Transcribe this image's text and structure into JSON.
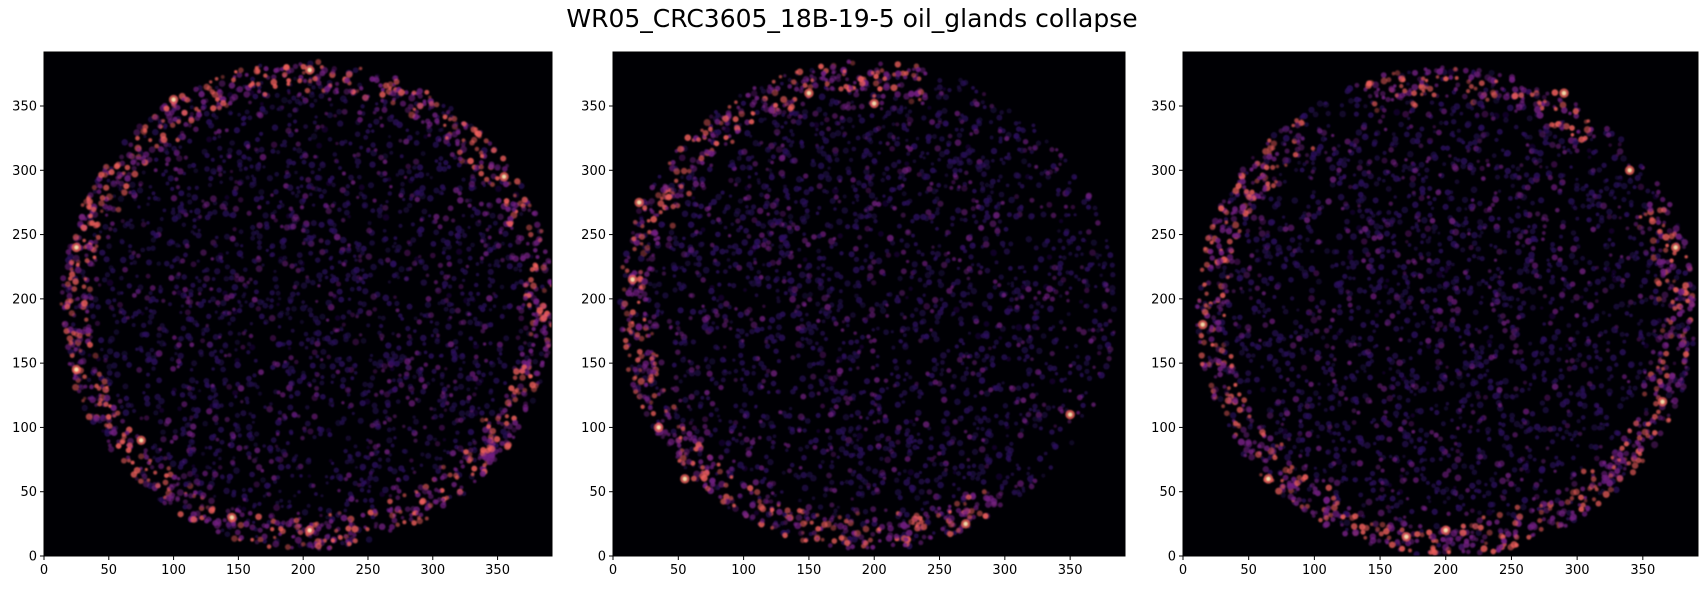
{
  "title": "WR05_CRC3605_18B-19-5 oil_glands collapse",
  "colormap": "magma",
  "colors": {
    "background": "#000004",
    "low": "#2c115f",
    "mid": "#721f81",
    "high": "#f1605d",
    "peak": "#fcfdbf"
  },
  "chart_data": [
    {
      "type": "heatmap",
      "title": "",
      "xlabel": "",
      "ylabel": "",
      "xlim": [
        0,
        392
      ],
      "ylim": [
        0,
        392
      ],
      "xticks": [
        0,
        50,
        100,
        150,
        200,
        250,
        300,
        350
      ],
      "yticks": [
        0,
        50,
        100,
        150,
        200,
        250,
        300,
        350
      ],
      "grid": false,
      "shape": "filled circle of speckles, brighter ring near the rim",
      "center": [
        203,
        195
      ],
      "radius": 190,
      "rim_sections": [
        [
          -3.14,
          3.14
        ]
      ],
      "hotspots": [
        [
          205,
          378
        ],
        [
          100,
          355
        ],
        [
          355,
          295
        ],
        [
          25,
          240
        ],
        [
          25,
          145
        ],
        [
          75,
          90
        ],
        [
          205,
          20
        ],
        [
          145,
          30
        ]
      ]
    },
    {
      "type": "heatmap",
      "title": "",
      "xlabel": "",
      "ylabel": "",
      "xlim": [
        0,
        392
      ],
      "ylim": [
        0,
        392
      ],
      "xticks": [
        0,
        50,
        100,
        150,
        200,
        250,
        300,
        350
      ],
      "yticks": [
        0,
        50,
        100,
        150,
        200,
        250,
        300,
        350
      ],
      "grid": false,
      "shape": "filled circle of speckles, brighter rim on left and top",
      "center": [
        195,
        195
      ],
      "radius": 190,
      "rim_sections": [
        [
          1.3,
          3.14
        ],
        [
          -3.14,
          -1.0
        ]
      ],
      "hotspots": [
        [
          150,
          360
        ],
        [
          200,
          352
        ],
        [
          20,
          275
        ],
        [
          35,
          100
        ],
        [
          55,
          60
        ],
        [
          270,
          25
        ],
        [
          350,
          110
        ],
        [
          15,
          215
        ]
      ]
    },
    {
      "type": "heatmap",
      "title": "",
      "xlabel": "",
      "ylabel": "",
      "xlim": [
        0,
        392
      ],
      "ylim": [
        0,
        392
      ],
      "xticks": [
        0,
        50,
        100,
        150,
        200,
        250,
        300,
        350
      ],
      "yticks": [
        0,
        50,
        100,
        150,
        200,
        250,
        300,
        350
      ],
      "grid": false,
      "shape": "filled circle of speckles, brighter rim on right and bottom",
      "center": [
        200,
        190
      ],
      "radius": 190,
      "rim_sections": [
        [
          -3.14,
          0.5
        ],
        [
          0.9,
          1.9
        ],
        [
          2.2,
          3.14
        ]
      ],
      "hotspots": [
        [
          290,
          360
        ],
        [
          340,
          300
        ],
        [
          375,
          240
        ],
        [
          365,
          120
        ],
        [
          200,
          20
        ],
        [
          170,
          15
        ],
        [
          15,
          180
        ],
        [
          65,
          60
        ]
      ]
    }
  ]
}
